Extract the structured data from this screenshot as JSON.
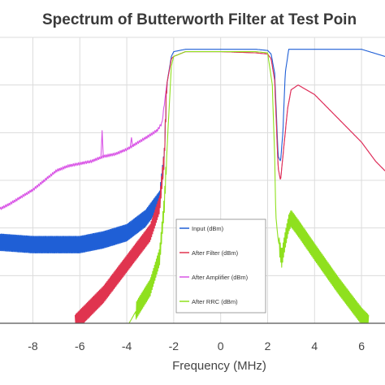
{
  "chart_data": {
    "type": "line",
    "title": "Spectrum of Butterworth Filter at Test Poin",
    "xlabel": "Frequency (MHz)",
    "ylabel": "",
    "xlim": [
      -9.4,
      7.0
    ],
    "ylim": [
      -120,
      0
    ],
    "x_ticks": [
      -8,
      -6,
      -4,
      -2,
      0,
      2,
      4,
      6
    ],
    "x_tick_labels": [
      "-8",
      "-6",
      "-4",
      "-2",
      "0",
      "2",
      "4",
      "6"
    ],
    "grid": true,
    "legend_position": "center-bottom",
    "series": [
      {
        "name": "Input (dBm)",
        "color": "#1f5fd6",
        "x": [
          -9.4,
          -8,
          -6,
          -5,
          -4,
          -3.2,
          -2.6,
          -2.4,
          -2.3,
          -2.1,
          -2,
          -1.5,
          0,
          1.5,
          2,
          2.15,
          2.3,
          2.45,
          2.55,
          2.65,
          2.75,
          2.9,
          3.2,
          4,
          5,
          6,
          7
        ],
        "values": [
          -86,
          -87,
          -87,
          -85,
          -82,
          -76,
          -68,
          -50,
          -20,
          -8,
          -6,
          -5,
          -5,
          -5,
          -5.5,
          -7,
          -15,
          -50,
          -52,
          -40,
          -15,
          -5,
          -5,
          -5,
          -5,
          -5,
          -8
        ],
        "ripple_from": -9.4,
        "ripple_to": -2.3,
        "ripple_amp": 3.5
      },
      {
        "name": "After Filter (dBm)",
        "color": "#e0344f",
        "x": [
          -6.2,
          -5,
          -4,
          -3,
          -2.6,
          -2.4,
          -2.3,
          -2.1,
          -2,
          -1.5,
          0,
          1.5,
          2,
          2.15,
          2.3,
          2.45,
          2.55,
          2.7,
          2.85,
          3,
          3.3,
          4,
          5,
          6,
          6.6,
          7
        ],
        "values": [
          -120,
          -108,
          -95,
          -82,
          -70,
          -50,
          -20,
          -9,
          -8,
          -6,
          -6,
          -6.5,
          -7,
          -9,
          -18,
          -55,
          -60,
          -45,
          -30,
          -22,
          -20,
          -24,
          -34,
          -44,
          -52,
          -56
        ],
        "ripple_from": -6.2,
        "ripple_to": -2.3,
        "ripple_amp": 3.5
      },
      {
        "name": "After Amplifier (dBm)",
        "color": "#d955e6",
        "x": [
          -9.4,
          -9,
          -8,
          -7,
          -6.5,
          -6,
          -5.5,
          -5,
          -4.5,
          -4,
          -3.5,
          -3,
          -2.7,
          -2.5,
          -2.3,
          -2.1,
          -2,
          -1.5,
          0,
          1.5,
          2,
          2.15,
          2.3,
          2.45,
          2.55,
          2.7,
          2.85,
          3,
          3.3,
          4,
          5,
          6,
          6.6,
          7
        ],
        "values": [
          -72,
          -70,
          -64,
          -56,
          -54,
          -53,
          -52,
          -50,
          -49,
          -47,
          -44,
          -41,
          -39,
          -36,
          -20,
          -9,
          -8,
          -6,
          -6,
          -6.5,
          -7,
          -9,
          -18,
          -55,
          -60,
          -45,
          -30,
          -22,
          -20,
          -24,
          -34,
          -44,
          -52,
          -56
        ],
        "spikes": [
          {
            "x": -5.05,
            "y": -39
          },
          {
            "x": -3.8,
            "y": -42
          }
        ]
      },
      {
        "name": "After RRC (dBm)",
        "color": "#8fe01e",
        "x": [
          -3.9,
          -3.5,
          -3,
          -2.6,
          -2.4,
          -2.25,
          -2.1,
          -2,
          -1.5,
          0,
          1.5,
          2,
          2.2,
          2.3,
          2.35,
          2.45,
          2.6,
          2.75,
          2.9,
          3,
          3.3,
          4,
          5,
          6,
          6.3
        ],
        "values": [
          -120,
          -113,
          -105,
          -92,
          -70,
          -40,
          -12,
          -8,
          -6,
          -6,
          -6,
          -6.5,
          -20,
          -50,
          -75,
          -85,
          -93,
          -85,
          -78,
          -76,
          -80,
          -90,
          -104,
          -117,
          -120
        ],
        "ripple_from": -3.6,
        "ripple_to": 6.3,
        "ripple_amp": 3.5,
        "ripple_skip": [
          -2.3,
          2.5
        ]
      }
    ]
  }
}
